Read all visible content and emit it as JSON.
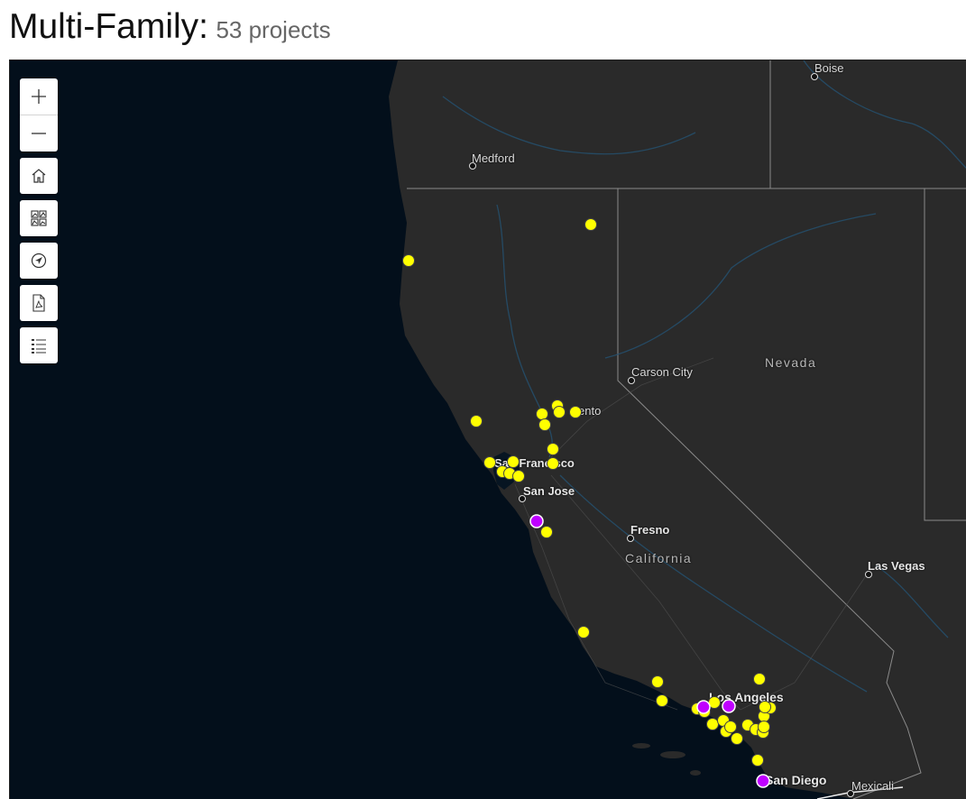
{
  "header": {
    "title": "Multi-Family:",
    "count_label": "53 projects"
  },
  "toolbar": {
    "zoom_in_icon": "plus-icon",
    "zoom_out_icon": "minus-icon",
    "home_icon": "home-icon",
    "basemap_icon": "basemap-gallery-icon",
    "locate_icon": "locate-icon",
    "pdf_icon": "pdf-file-icon",
    "legend_icon": "legend-list-icon"
  },
  "map": {
    "labels": {
      "boise": "Boise",
      "medford": "Medford",
      "carson_city": "Carson City",
      "nevada": "Nevada",
      "sacramento": "ento",
      "san_francisco": "San Francisco",
      "san_jose": "San Jose",
      "fresno": "Fresno",
      "california": "California",
      "las_vegas": "Las Vegas",
      "los_angeles": "Los Angeles",
      "san_diego": "San Diego",
      "mexicali": "Mexicali"
    },
    "colors": {
      "project_marker": "#ffff00",
      "highlighted_marker": "#bf00ff",
      "ocean": "#030f1b",
      "land": "#2a2a2a"
    }
  }
}
